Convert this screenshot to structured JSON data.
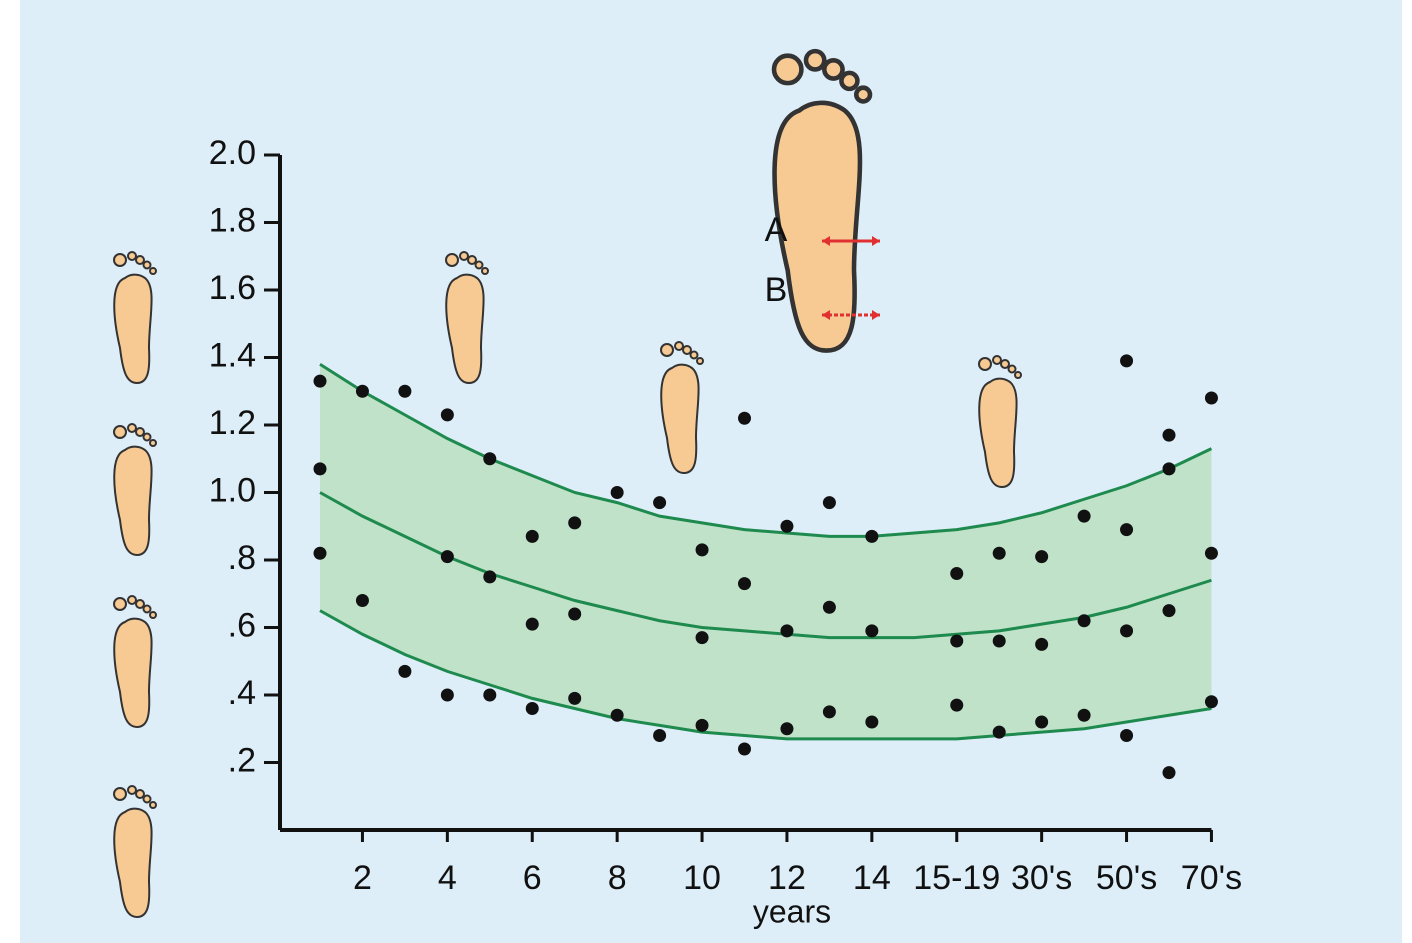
{
  "chart_data": {
    "type": "scatter-band",
    "x_label": "years",
    "annotations": [
      "A",
      "B"
    ],
    "categories": [
      null,
      "2",
      null,
      "4",
      null,
      "6",
      null,
      "8",
      null,
      "10",
      null,
      "12",
      null,
      "14",
      null,
      "15-19",
      null,
      "30's",
      null,
      "50's",
      null,
      "70's"
    ],
    "ylim": [
      0,
      2
    ],
    "yticks": [
      {
        "value": 0.2,
        "label": ".2"
      },
      {
        "value": 0.4,
        "label": ".4"
      },
      {
        "value": 0.6,
        "label": ".6"
      },
      {
        "value": 0.8,
        "label": ".8"
      },
      {
        "value": 1.0,
        "label": "1.0"
      },
      {
        "value": 1.2,
        "label": "1.2"
      },
      {
        "value": 1.4,
        "label": "1.4"
      },
      {
        "value": 1.6,
        "label": "1.6"
      },
      {
        "value": 1.8,
        "label": "1.8"
      },
      {
        "value": 2.0,
        "label": "2.0"
      }
    ],
    "point_color": "#111111",
    "series": [
      {
        "color": "#111111",
        "values": [
          1.33,
          1.3,
          1.3,
          1.23,
          1.1,
          0.87,
          0.91,
          1.0,
          0.97,
          0.83,
          1.22,
          0.9,
          0.97,
          0.87,
          null,
          0.76,
          0.82,
          0.81,
          0.93,
          1.39,
          1.17,
          1.28
        ]
      },
      {
        "color": "#111111",
        "values": [
          1.07,
          0.68,
          0.47,
          0.81,
          0.75,
          0.61,
          0.64,
          0.34,
          0.28,
          0.57,
          0.73,
          0.59,
          0.66,
          0.59,
          null,
          0.56,
          0.56,
          0.55,
          0.62,
          0.89,
          1.07,
          0.82
        ]
      },
      {
        "color": "#111111",
        "values": [
          0.82,
          null,
          null,
          0.4,
          0.4,
          0.36,
          0.39,
          null,
          null,
          0.31,
          0.24,
          0.3,
          0.35,
          0.32,
          null,
          0.37,
          0.29,
          0.32,
          0.34,
          0.59,
          0.65,
          0.38
        ]
      },
      {
        "color": "#111111",
        "values": [
          null,
          null,
          null,
          null,
          null,
          null,
          null,
          null,
          null,
          null,
          null,
          null,
          null,
          null,
          null,
          null,
          null,
          null,
          null,
          0.28,
          0.17,
          null
        ]
      }
    ],
    "band": {
      "fill": "#bfe2c9",
      "line_color": "#1e8a4e",
      "upper": [
        1.38,
        1.3,
        1.23,
        1.16,
        1.1,
        1.05,
        1.0,
        0.97,
        0.93,
        0.91,
        0.89,
        0.88,
        0.87,
        0.87,
        0.88,
        0.89,
        0.91,
        0.94,
        0.98,
        1.02,
        1.07,
        1.13
      ],
      "middle": [
        1.0,
        0.93,
        0.87,
        0.81,
        0.76,
        0.72,
        0.68,
        0.65,
        0.62,
        0.6,
        0.59,
        0.58,
        0.57,
        0.57,
        0.57,
        0.58,
        0.59,
        0.61,
        0.63,
        0.66,
        0.7,
        0.74
      ],
      "lower": [
        0.65,
        0.58,
        0.52,
        0.47,
        0.43,
        0.39,
        0.36,
        0.33,
        0.31,
        0.29,
        0.28,
        0.27,
        0.27,
        0.27,
        0.27,
        0.27,
        0.28,
        0.29,
        0.3,
        0.32,
        0.34,
        0.36
      ]
    }
  }
}
